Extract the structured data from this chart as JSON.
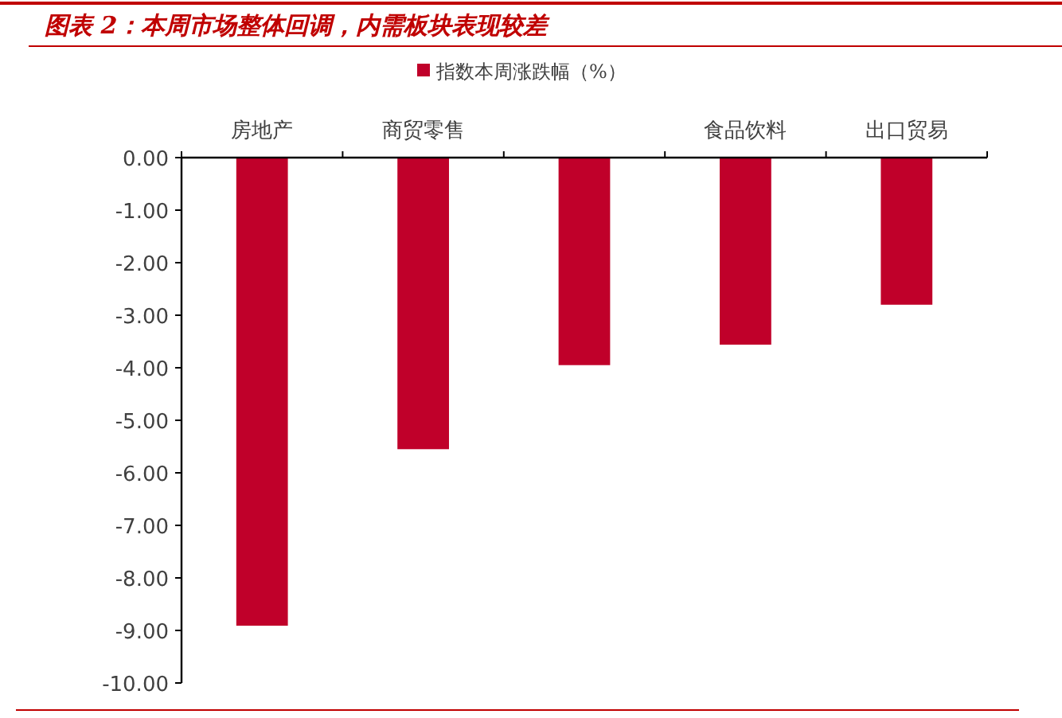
{
  "chart_data": {
    "type": "bar",
    "title": "图表 2：本周市场整体回调，内需板块表现较差",
    "categories": [
      "房地产",
      "商贸零售",
      null,
      "食品饮料",
      "出口贸易"
    ],
    "series": [
      {
        "name": "指数本周涨跌幅（%）",
        "color": "#c0002a",
        "values": [
          -8.91,
          -5.55,
          -3.95,
          -3.56,
          -2.8
        ]
      }
    ],
    "ylim": [
      -10,
      0
    ],
    "yticks": [
      {
        "value": 0,
        "label": "0.00"
      },
      {
        "value": -1,
        "label": "-1.00"
      },
      {
        "value": -2,
        "label": "-2.00"
      },
      {
        "value": -3,
        "label": "-3.00"
      },
      {
        "value": -4,
        "label": "-4.00"
      },
      {
        "value": -5,
        "label": "-5.00"
      },
      {
        "value": -6,
        "label": "-6.00"
      },
      {
        "value": -7,
        "label": "-7.00"
      },
      {
        "value": -8,
        "label": "-8.00"
      },
      {
        "value": -9,
        "label": "-9.00"
      },
      {
        "value": -10,
        "label": "-10.00"
      }
    ],
    "legend": "top"
  }
}
